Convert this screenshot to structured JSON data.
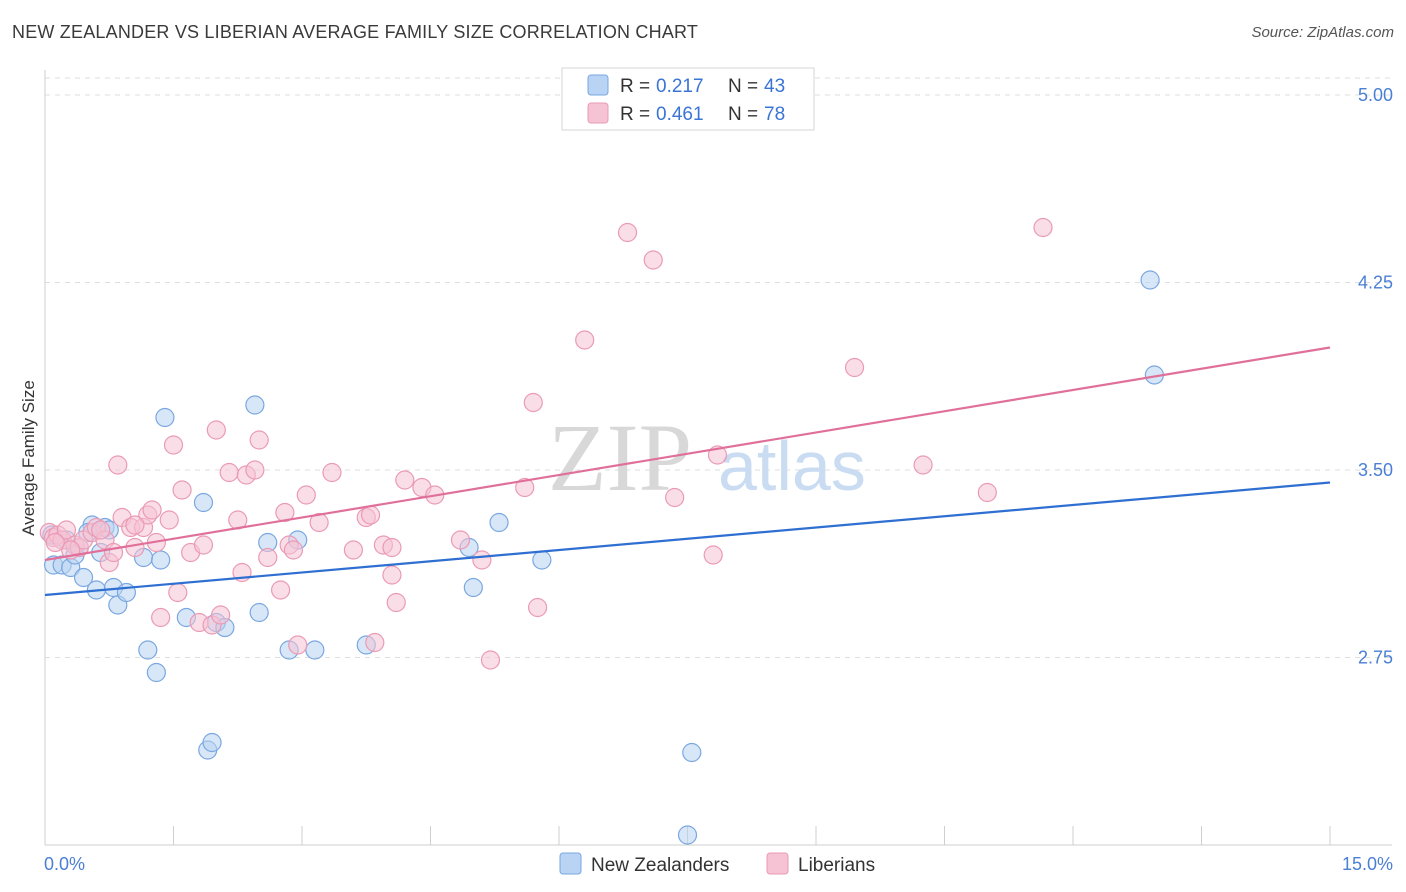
{
  "title": "NEW ZEALANDER VS LIBERIAN AVERAGE FAMILY SIZE CORRELATION CHART",
  "source": "Source: ZipAtlas.com",
  "colors": {
    "blue_fill": "#b8d3f3",
    "blue_stroke": "#7aa7e0",
    "blue_line": "#2e6fd1",
    "pink_fill": "#f6c3d4",
    "pink_stroke": "#ea9ab5",
    "pink_line": "#e0709a",
    "tick_text": "#4a7fd4",
    "grid": "#dedede"
  },
  "watermark": {
    "zip": "ZIP",
    "atlas": "atlas"
  },
  "legend": {
    "rows": [
      {
        "r_label": "R =",
        "r_value": "0.217",
        "n_label": "N =",
        "n_value": "43",
        "color": "blue"
      },
      {
        "r_label": "R =",
        "r_value": "0.461",
        "n_label": "N =",
        "n_value": "78",
        "color": "pink"
      }
    ]
  },
  "bottom_legend": [
    "New Zealanders",
    "Liberians"
  ],
  "chart_data": {
    "type": "scatter",
    "title": "NEW ZEALANDER VS LIBERIAN AVERAGE FAMILY SIZE CORRELATION CHART",
    "xlabel": "",
    "ylabel": "Average Family Size",
    "xlim": [
      0,
      15
    ],
    "ylim": [
      2.0,
      5.1
    ],
    "x_tick_labels": [
      "0.0%",
      "15.0%"
    ],
    "y_ticks": [
      2.75,
      3.5,
      4.25,
      5.0
    ],
    "y_tick_labels": [
      "2.75",
      "3.50",
      "4.25",
      "5.00"
    ],
    "grid": true,
    "legend_position": "top-center",
    "series": [
      {
        "name": "New Zealanders",
        "color": "blue",
        "trend": [
          [
            0,
            3.0
          ],
          [
            15,
            3.45
          ]
        ],
        "points": [
          [
            0.08,
            3.24
          ],
          [
            0.1,
            3.12
          ],
          [
            0.2,
            3.12
          ],
          [
            0.3,
            3.11
          ],
          [
            0.35,
            3.16
          ],
          [
            0.4,
            3.19
          ],
          [
            0.45,
            3.07
          ],
          [
            0.55,
            3.28
          ],
          [
            0.6,
            3.02
          ],
          [
            0.65,
            3.17
          ],
          [
            0.7,
            3.27
          ],
          [
            0.75,
            3.26
          ],
          [
            0.8,
            3.03
          ],
          [
            0.85,
            2.96
          ],
          [
            0.95,
            3.01
          ],
          [
            1.15,
            3.15
          ],
          [
            1.2,
            2.78
          ],
          [
            1.3,
            2.69
          ],
          [
            1.35,
            3.14
          ],
          [
            1.4,
            3.71
          ],
          [
            1.65,
            2.91
          ],
          [
            1.85,
            3.37
          ],
          [
            1.9,
            2.38
          ],
          [
            1.95,
            2.41
          ],
          [
            2.0,
            2.89
          ],
          [
            2.1,
            2.87
          ],
          [
            2.45,
            3.76
          ],
          [
            2.5,
            2.93
          ],
          [
            2.6,
            3.21
          ],
          [
            2.85,
            2.78
          ],
          [
            2.95,
            3.22
          ],
          [
            3.15,
            2.78
          ],
          [
            3.75,
            2.8
          ],
          [
            4.95,
            3.19
          ],
          [
            5.0,
            3.03
          ],
          [
            5.3,
            3.29
          ],
          [
            5.8,
            3.14
          ],
          [
            7.55,
            2.37
          ],
          [
            7.5,
            2.04
          ],
          [
            12.95,
            3.88
          ],
          [
            12.9,
            4.26
          ],
          [
            0.5,
            3.25
          ],
          [
            0.25,
            3.22
          ]
        ]
      },
      {
        "name": "Liberians",
        "color": "pink",
        "trend": [
          [
            0,
            3.14
          ],
          [
            15,
            3.99
          ]
        ],
        "points": [
          [
            0.05,
            3.25
          ],
          [
            0.1,
            3.23
          ],
          [
            0.15,
            3.24
          ],
          [
            0.2,
            3.22
          ],
          [
            0.25,
            3.26
          ],
          [
            0.35,
            3.2
          ],
          [
            0.4,
            3.19
          ],
          [
            0.45,
            3.22
          ],
          [
            0.55,
            3.25
          ],
          [
            0.6,
            3.27
          ],
          [
            0.7,
            3.22
          ],
          [
            0.75,
            3.13
          ],
          [
            0.8,
            3.17
          ],
          [
            0.85,
            3.52
          ],
          [
            0.9,
            3.31
          ],
          [
            1.0,
            3.27
          ],
          [
            1.05,
            3.19
          ],
          [
            1.15,
            3.27
          ],
          [
            1.2,
            3.32
          ],
          [
            1.25,
            3.34
          ],
          [
            1.3,
            3.21
          ],
          [
            1.35,
            2.91
          ],
          [
            1.45,
            3.3
          ],
          [
            1.5,
            3.6
          ],
          [
            1.55,
            3.01
          ],
          [
            1.6,
            3.42
          ],
          [
            1.7,
            3.17
          ],
          [
            1.8,
            2.89
          ],
          [
            1.85,
            3.2
          ],
          [
            1.95,
            2.88
          ],
          [
            2.0,
            3.66
          ],
          [
            2.05,
            2.92
          ],
          [
            2.15,
            3.49
          ],
          [
            2.25,
            3.3
          ],
          [
            2.3,
            3.09
          ],
          [
            2.35,
            3.48
          ],
          [
            2.45,
            3.5
          ],
          [
            2.5,
            3.62
          ],
          [
            2.6,
            3.15
          ],
          [
            2.75,
            3.02
          ],
          [
            2.85,
            3.2
          ],
          [
            2.9,
            3.18
          ],
          [
            2.95,
            2.8
          ],
          [
            3.05,
            3.4
          ],
          [
            3.2,
            3.29
          ],
          [
            3.35,
            3.49
          ],
          [
            3.6,
            3.18
          ],
          [
            3.75,
            3.31
          ],
          [
            3.85,
            2.81
          ],
          [
            3.95,
            3.2
          ],
          [
            4.05,
            3.08
          ],
          [
            4.1,
            2.97
          ],
          [
            4.2,
            3.46
          ],
          [
            4.4,
            3.43
          ],
          [
            4.55,
            3.4
          ],
          [
            4.85,
            3.22
          ],
          [
            5.1,
            3.14
          ],
          [
            5.2,
            2.74
          ],
          [
            5.6,
            3.43
          ],
          [
            5.7,
            3.77
          ],
          [
            5.75,
            2.95
          ],
          [
            6.3,
            4.02
          ],
          [
            6.8,
            4.45
          ],
          [
            7.1,
            4.34
          ],
          [
            7.35,
            3.39
          ],
          [
            7.8,
            3.16
          ],
          [
            7.85,
            3.56
          ],
          [
            9.45,
            3.91
          ],
          [
            10.25,
            3.52
          ],
          [
            11.0,
            3.41
          ],
          [
            11.65,
            4.47
          ],
          [
            0.3,
            3.18
          ],
          [
            0.65,
            3.26
          ],
          [
            3.8,
            3.32
          ],
          [
            4.05,
            3.19
          ],
          [
            1.05,
            3.28
          ],
          [
            2.8,
            3.33
          ],
          [
            0.12,
            3.21
          ]
        ]
      }
    ]
  }
}
